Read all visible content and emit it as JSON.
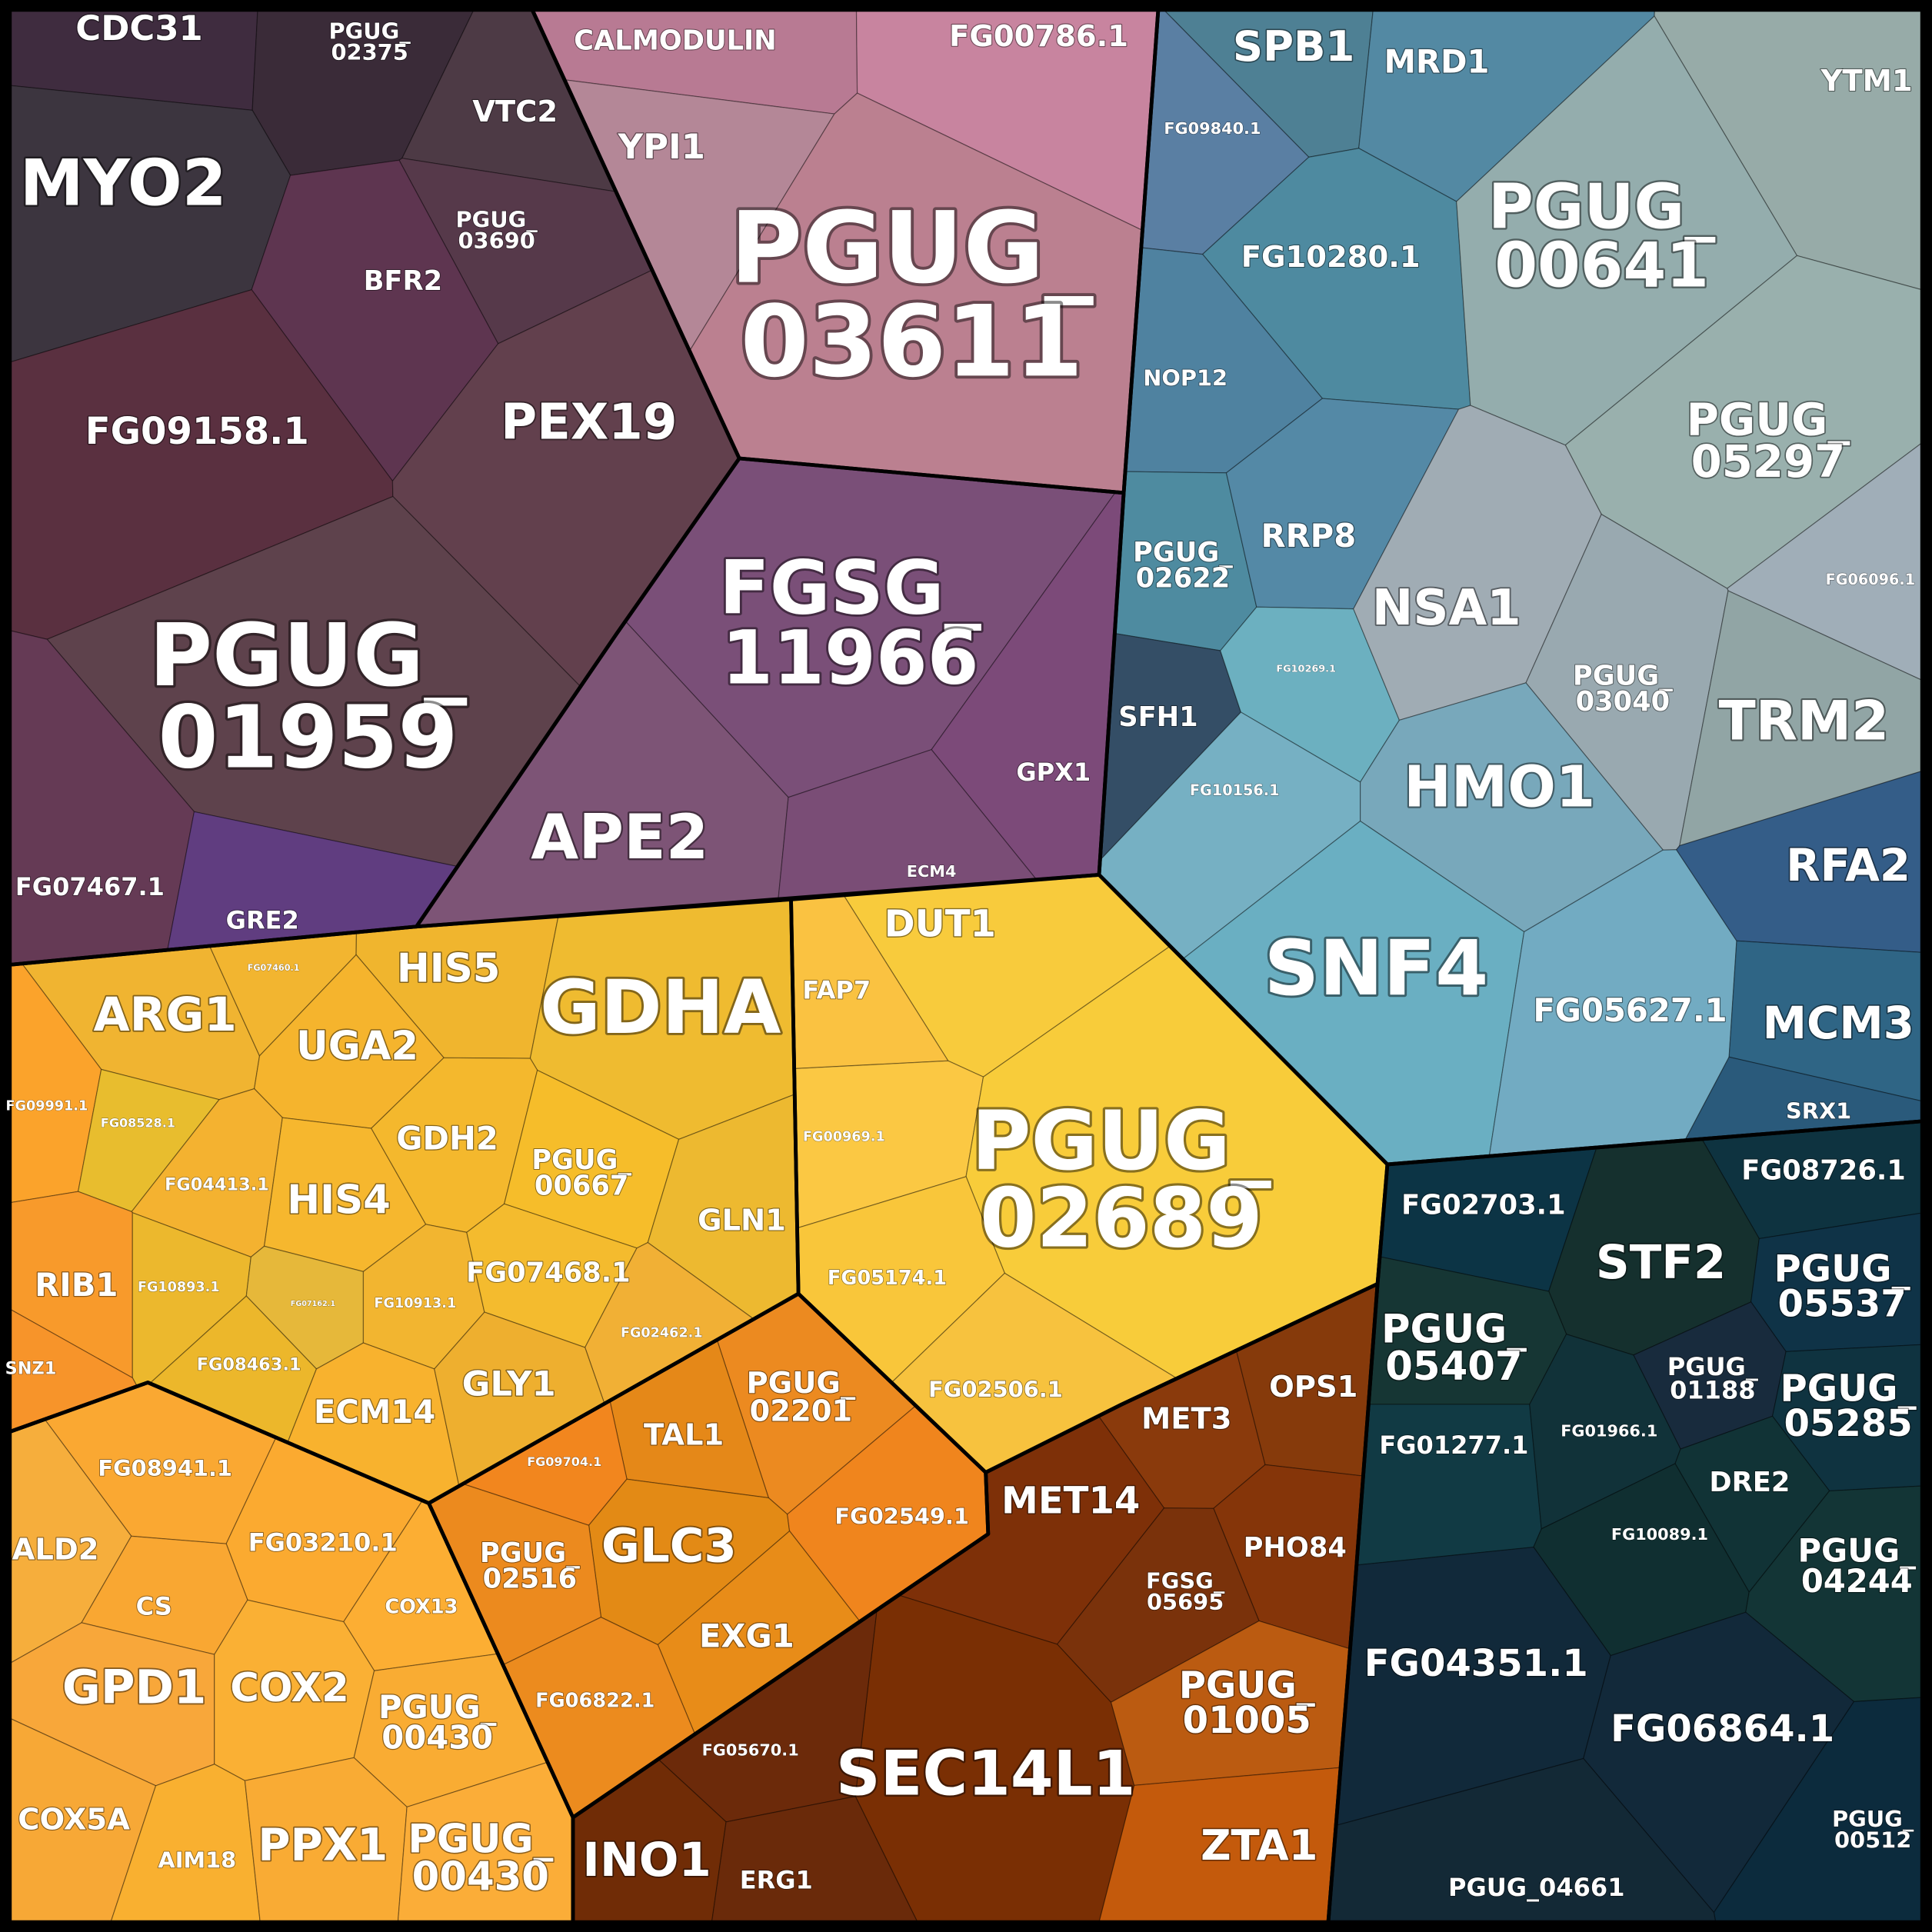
{
  "cells": [
    {
      "label": "CDC31",
      "color": "#3f2c3f"
    },
    {
      "label": "PGUG_02375",
      "color": "#3a2b38"
    },
    {
      "label": "MYO2",
      "color": "#3c353f"
    },
    {
      "label": "VTC2",
      "color": "#4d3a45"
    },
    {
      "label": "PGUG_03690",
      "color": "#56394a"
    },
    {
      "label": "BFR2",
      "color": "#5e3550"
    },
    {
      "label": "FG09158.1",
      "color": "#5a3040"
    },
    {
      "label": "PEX19",
      "color": "#62404d"
    },
    {
      "label": "PGUG_01959",
      "color": "#5e424c"
    },
    {
      "label": "FG07467.1",
      "color": "#653a55"
    },
    {
      "label": "GRE2",
      "color": "#603d80"
    },
    {
      "label": "CALMODULIN",
      "color": "#b87a93"
    },
    {
      "label": "FG00786.1",
      "color": "#c8849f"
    },
    {
      "label": "YPI1",
      "color": "#b48797"
    },
    {
      "label": "PGUG_03611",
      "color": "#bb8090"
    },
    {
      "label": "FGSG_11966",
      "color": "#7a4f78"
    },
    {
      "label": "APE2",
      "color": "#7d5476"
    },
    {
      "label": "GPX1",
      "color": "#7c4a79"
    },
    {
      "label": "ECM4",
      "color": "#7a4d76"
    },
    {
      "label": "SPB1",
      "color": "#4e8094"
    },
    {
      "label": "MRD1",
      "color": "#5389a3"
    },
    {
      "label": "FG09840.1",
      "color": "#5a7fa3"
    },
    {
      "label": "FG10280.1",
      "color": "#4e8aa0"
    },
    {
      "label": "NOP12",
      "color": "#4f82a0"
    },
    {
      "label": "PGUG_02622",
      "color": "#4e8ba0"
    },
    {
      "label": "RRP8",
      "color": "#5489a6"
    },
    {
      "label": "SFH1",
      "color": "#344e66"
    },
    {
      "label": "FG10269.1",
      "color": "#6cb0c0"
    },
    {
      "label": "FG10156.1",
      "color": "#76b0c3"
    },
    {
      "label": "YTM1",
      "color": "#97aba8"
    },
    {
      "label": "PGUG_00641",
      "color": "#94adad"
    },
    {
      "label": "PGUG_05297",
      "color": "#99b0ad"
    },
    {
      "label": "FG06096.1",
      "color": "#a0aeb8"
    },
    {
      "label": "NSA1",
      "color": "#a0acb4"
    },
    {
      "label": "PGUG_03040",
      "color": "#99a9b0"
    },
    {
      "label": "TRM2",
      "color": "#91a5a5"
    },
    {
      "label": "HMO1",
      "color": "#78a8bb"
    },
    {
      "label": "SNF4",
      "color": "#6aafc2"
    },
    {
      "label": "FG05627.1",
      "color": "#72abc2"
    },
    {
      "label": "RFA2",
      "color": "#345d88"
    },
    {
      "label": "MCM3",
      "color": "#2f6585"
    },
    {
      "label": "SRX1",
      "color": "#2a5a7b"
    },
    {
      "label": "ARG1",
      "color": "#f0b431"
    },
    {
      "label": "FG07460.1",
      "color": "#f2b530"
    },
    {
      "label": "HIS5",
      "color": "#f0b52e"
    },
    {
      "label": "GDHA",
      "color": "#efbb30"
    },
    {
      "label": "UGA2",
      "color": "#f5b42d"
    },
    {
      "label": "FG09991.1",
      "color": "#fba32b"
    },
    {
      "label": "FG08528.1",
      "color": "#e8bd2e"
    },
    {
      "label": "FG04413.1",
      "color": "#f4b230"
    },
    {
      "label": "HIS4",
      "color": "#f6b72e"
    },
    {
      "label": "GDH2",
      "color": "#f4b82d"
    },
    {
      "label": "PGUG_00667",
      "color": "#f6bd2a"
    },
    {
      "label": "GLN1",
      "color": "#edb930"
    },
    {
      "label": "RIB1",
      "color": "#f89a2b"
    },
    {
      "label": "FG10893.1",
      "color": "#ecb82d"
    },
    {
      "label": "FG07162.1",
      "color": "#e6b83a"
    },
    {
      "label": "FG10913.1",
      "color": "#f2b530"
    },
    {
      "label": "FG07468.1",
      "color": "#f4bb2e"
    },
    {
      "label": "FG02462.1",
      "color": "#f1b035"
    },
    {
      "label": "SNZ1",
      "color": "#f7942a"
    },
    {
      "label": "FG08463.1",
      "color": "#ecb72b"
    },
    {
      "label": "ECM14",
      "color": "#f8b22e"
    },
    {
      "label": "GLY1",
      "color": "#eeaf2f"
    },
    {
      "label": "DUT1",
      "color": "#f8cb3c"
    },
    {
      "label": "FAP7",
      "color": "#fac241"
    },
    {
      "label": "FG00969.1",
      "color": "#fbc843"
    },
    {
      "label": "PGUG_02689",
      "color": "#f8cc3a"
    },
    {
      "label": "FG05174.1",
      "color": "#f9c63a"
    },
    {
      "label": "FG02506.1",
      "color": "#f7c23e"
    },
    {
      "label": "FG08941.1",
      "color": "#faa832"
    },
    {
      "label": "ALD2",
      "color": "#f6ae3c"
    },
    {
      "label": "FG03210.1",
      "color": "#fbaa30"
    },
    {
      "label": "CS",
      "color": "#f9a732"
    },
    {
      "label": "COX13",
      "color": "#fcae33"
    },
    {
      "label": "GPD1",
      "color": "#f8a73a"
    },
    {
      "label": "COX2",
      "color": "#fab034"
    },
    {
      "label": "PGUG_00430",
      "color": "#f9ac33"
    },
    {
      "label": "COX5A",
      "color": "#f7a836"
    },
    {
      "label": "AIM18",
      "color": "#f9b030"
    },
    {
      "label": "PPX1",
      "color": "#f9ab34"
    },
    {
      "label": "PGUG_00430",
      "color": "#fbad38"
    },
    {
      "label": "PGUG_02201",
      "color": "#ec8a20"
    },
    {
      "label": "TAL1",
      "color": "#e58818"
    },
    {
      "label": "FG09704.1",
      "color": "#f2861e"
    },
    {
      "label": "GLC3",
      "color": "#e38a15"
    },
    {
      "label": "FG02549.1",
      "color": "#f0851d"
    },
    {
      "label": "PGUG_02516",
      "color": "#ec8a1e"
    },
    {
      "label": "EXG1",
      "color": "#e88c18"
    },
    {
      "label": "FG06822.1",
      "color": "#ec8b1e"
    },
    {
      "label": "MET3",
      "color": "#8a3a0c"
    },
    {
      "label": "OPS1",
      "color": "#863a0b"
    },
    {
      "label": "MET14",
      "color": "#7e3008"
    },
    {
      "label": "PHO84",
      "color": "#853509"
    },
    {
      "label": "FGSG_05695",
      "color": "#7a320b"
    },
    {
      "label": "PGUG_01005",
      "color": "#bb5b11"
    },
    {
      "label": "ZTA1",
      "color": "#c45a0c"
    },
    {
      "label": "SEC14L1",
      "color": "#7a2f04"
    },
    {
      "label": "FG05670.1",
      "color": "#6c2a0a"
    },
    {
      "label": "INO1",
      "color": "#702c06"
    },
    {
      "label": "ERG1",
      "color": "#6a2a0a"
    },
    {
      "label": "FG02703.1",
      "color": "#0c3445"
    },
    {
      "label": "FG08726.1",
      "color": "#0e3340"
    },
    {
      "label": "STF2",
      "color": "#15302e"
    },
    {
      "label": "PGUG_05537",
      "color": "#0f3347"
    },
    {
      "label": "PGUG_05407",
      "color": "#163634"
    },
    {
      "label": "PGUG_01188",
      "color": "#182b3d"
    },
    {
      "label": "PGUG_05285",
      "color": "#0f3340"
    },
    {
      "label": "FG01277.1",
      "color": "#113a44"
    },
    {
      "label": "FG01966.1",
      "color": "#113239"
    },
    {
      "label": "DRE2",
      "color": "#113336"
    },
    {
      "label": "FG10089.1",
      "color": "#102f31"
    },
    {
      "label": "PGUG_04244",
      "color": "#133536"
    },
    {
      "label": "FG04351.1",
      "color": "#11293a"
    },
    {
      "label": "FG06864.1",
      "color": "#12293a"
    },
    {
      "label": "PGUG_00512",
      "color": "#0c2b3d"
    },
    {
      "label": "PGUG_04661",
      "color": "#132936"
    }
  ]
}
